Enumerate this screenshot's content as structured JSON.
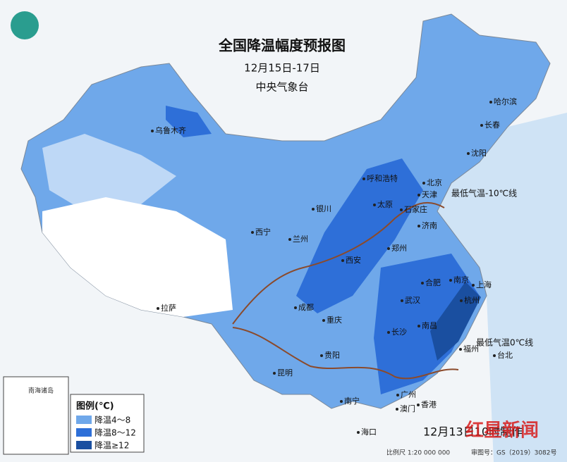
{
  "header": {
    "title": "全国降温幅度预报图",
    "date_range": "12月15日-17日",
    "issuer": "中央气象台"
  },
  "cities": [
    "乌鲁木齐",
    "哈尔滨",
    "长春",
    "沈阳",
    "呼和浩特",
    "北京",
    "天津",
    "银川",
    "太原",
    "石家庄",
    "济南",
    "西宁",
    "兰州",
    "西安",
    "郑州",
    "拉萨",
    "成都",
    "合肥",
    "南京",
    "上海",
    "武汉",
    "杭州",
    "重庆",
    "长沙",
    "南昌",
    "福州",
    "台北",
    "贵阳",
    "昆明",
    "南宁",
    "广州",
    "澳门",
    "香港",
    "海口"
  ],
  "annotations": {
    "isotherm_minus10": "最低气温-10℃线",
    "isotherm_0": "最低气温0℃线"
  },
  "legend": {
    "title": "图例(℃)",
    "items": [
      "降温4～8",
      "降温8～12",
      "降温≥12"
    ]
  },
  "footer": {
    "issued": "12月13日10时制作",
    "scale": "比例尺 1:20 000 000",
    "map_approval": "审图号：GS（2019）3082号"
  },
  "inset": {
    "label": "南海诸岛"
  },
  "watermark": "红星新闻"
}
